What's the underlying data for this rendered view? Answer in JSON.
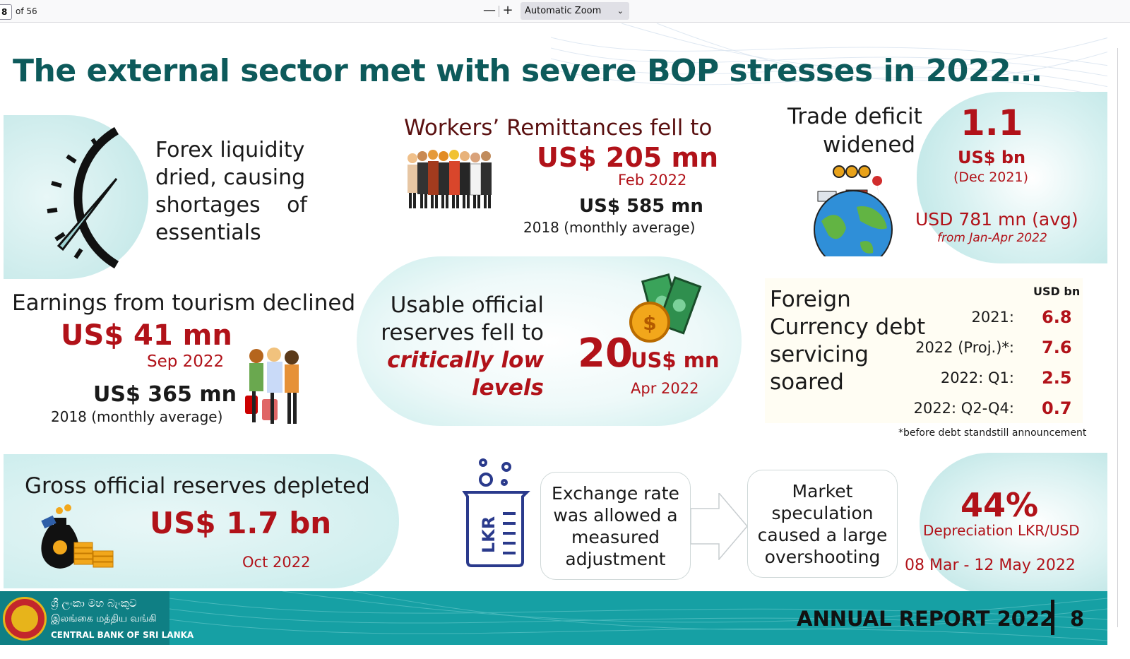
{
  "viewer": {
    "page_number": "8",
    "page_count_label": "of 56",
    "zoom_out": "—",
    "zoom_in": "+",
    "zoom_label": "Automatic Zoom"
  },
  "slide": {
    "title": "The external sector met with severe BOP stresses in 2022…",
    "forex": {
      "lines": [
        "Forex liquidity",
        "dried, causing",
        "shortages of",
        "essentials"
      ]
    },
    "remittances": {
      "title": "Workers’ Remittances fell to",
      "value": "US$ 205 mn",
      "month": "Feb 2022",
      "ref_value": "US$ 585 mn",
      "ref_label": "2018 (monthly average)"
    },
    "trade": {
      "title_line1": "Trade deficit",
      "title_line2": "widened",
      "value": "1.1",
      "unit": "US$ bn",
      "date": "(Dec 2021)",
      "avg_value": "USD 781 mn (avg)",
      "avg_label": "from Jan-Apr 2022"
    },
    "tourism": {
      "title": "Earnings from tourism declined",
      "value": "US$ 41 mn",
      "month": "Sep 2022",
      "ref_value": "US$ 365 mn",
      "ref_label": "2018 (monthly average)"
    },
    "usable_reserves": {
      "line1": "Usable official",
      "line2": "reserves fell to",
      "line3": "critically low",
      "line4": "levels",
      "value": "20",
      "unit": "US$ mn",
      "month": "Apr 2022"
    },
    "fc_debt": {
      "title_lines": [
        "Foreign",
        "Currency debt",
        "servicing",
        "soared"
      ],
      "unit": "USD bn",
      "rows": [
        {
          "label": "2021:",
          "value": "6.8"
        },
        {
          "label": "2022 (Proj.)*:",
          "value": "7.6"
        },
        {
          "label": "2022: Q1:",
          "value": "2.5"
        },
        {
          "label": "2022: Q2-Q4:",
          "value": "0.7"
        }
      ],
      "note": "*before debt standstill announcement"
    },
    "gross_reserves": {
      "title": "Gross official reserves depleted",
      "value": "US$ 1.7 bn",
      "month": "Oct 2022"
    },
    "exchange": {
      "icon_label": "LKR",
      "box1_lines": [
        "Exchange rate",
        "was allowed a",
        "measured",
        "adjustment"
      ],
      "box2_lines": [
        "Market",
        "speculation",
        "caused a large",
        "overshooting"
      ],
      "dep_value": "44%",
      "dep_label": "Depreciation LKR/USD",
      "dep_dates": "08 Mar - 12 May 2022"
    },
    "footer": {
      "sinhala": "ශ්‍රී ලංකා මහ බැංකුව",
      "tamil": "இலங்கை மத்திய வங்கி",
      "english": "CENTRAL BANK OF SRI LANKA",
      "report": "ANNUAL REPORT 2022",
      "page": "8"
    }
  },
  "colors": {
    "title": "#0d5a5b",
    "accent_red": "#b11219",
    "footer_teal": "#16a0a4"
  },
  "icons": [
    "gauge-icon",
    "workers-icon",
    "globe-trade-icon",
    "tourists-icon",
    "cash-coin-icon",
    "money-bag-icon",
    "beaker-lkr-icon",
    "arrow-right-icon",
    "cbsl-seal-icon",
    "chevron-down-icon"
  ]
}
